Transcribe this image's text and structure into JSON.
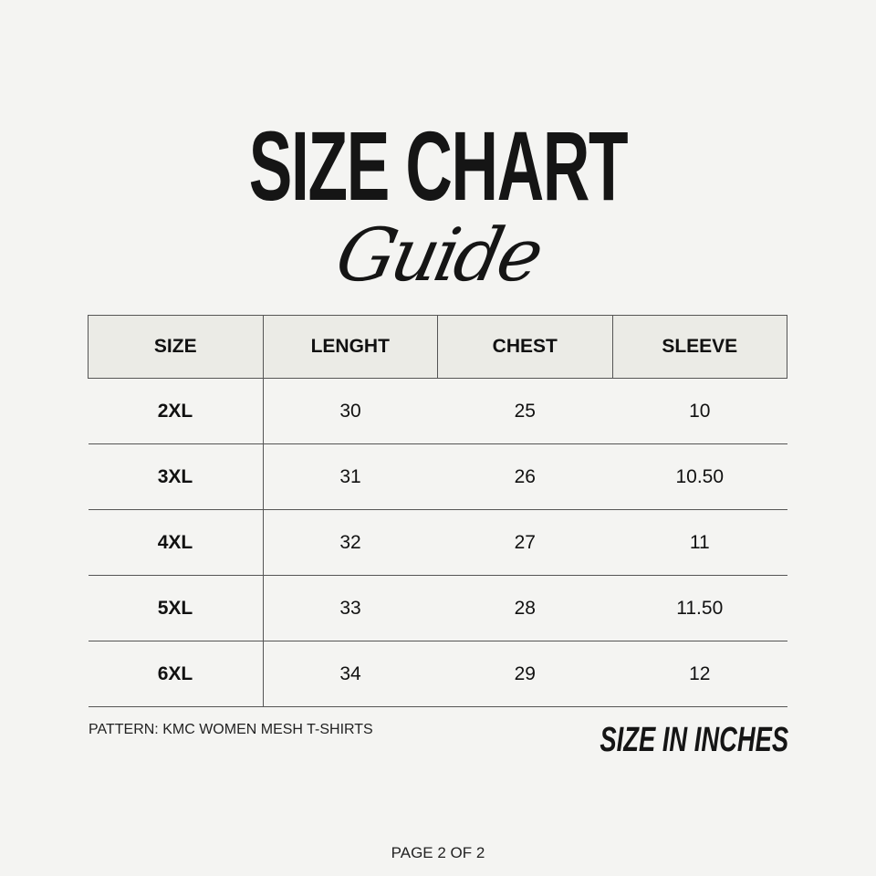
{
  "title": {
    "main": "SIZE CHART",
    "script": "Guide"
  },
  "table": {
    "headers": [
      "SIZE",
      "LENGHT",
      "CHEST",
      "SLEEVE"
    ],
    "rows": [
      [
        "2XL",
        "30",
        "25",
        "10"
      ],
      [
        "3XL",
        "31",
        "26",
        "10.50"
      ],
      [
        "4XL",
        "32",
        "27",
        "11"
      ],
      [
        "5XL",
        "33",
        "28",
        "11.50"
      ],
      [
        "6XL",
        "34",
        "29",
        "12"
      ]
    ]
  },
  "footer": {
    "pattern": "PATTERN: KMC WOMEN MESH T-SHIRTS",
    "units": "SIZE IN INCHES",
    "page": "PAGE 2 OF 2"
  },
  "colors": {
    "background": "#f4f4f2",
    "header_bg": "#ebebe6",
    "text": "#111111"
  }
}
